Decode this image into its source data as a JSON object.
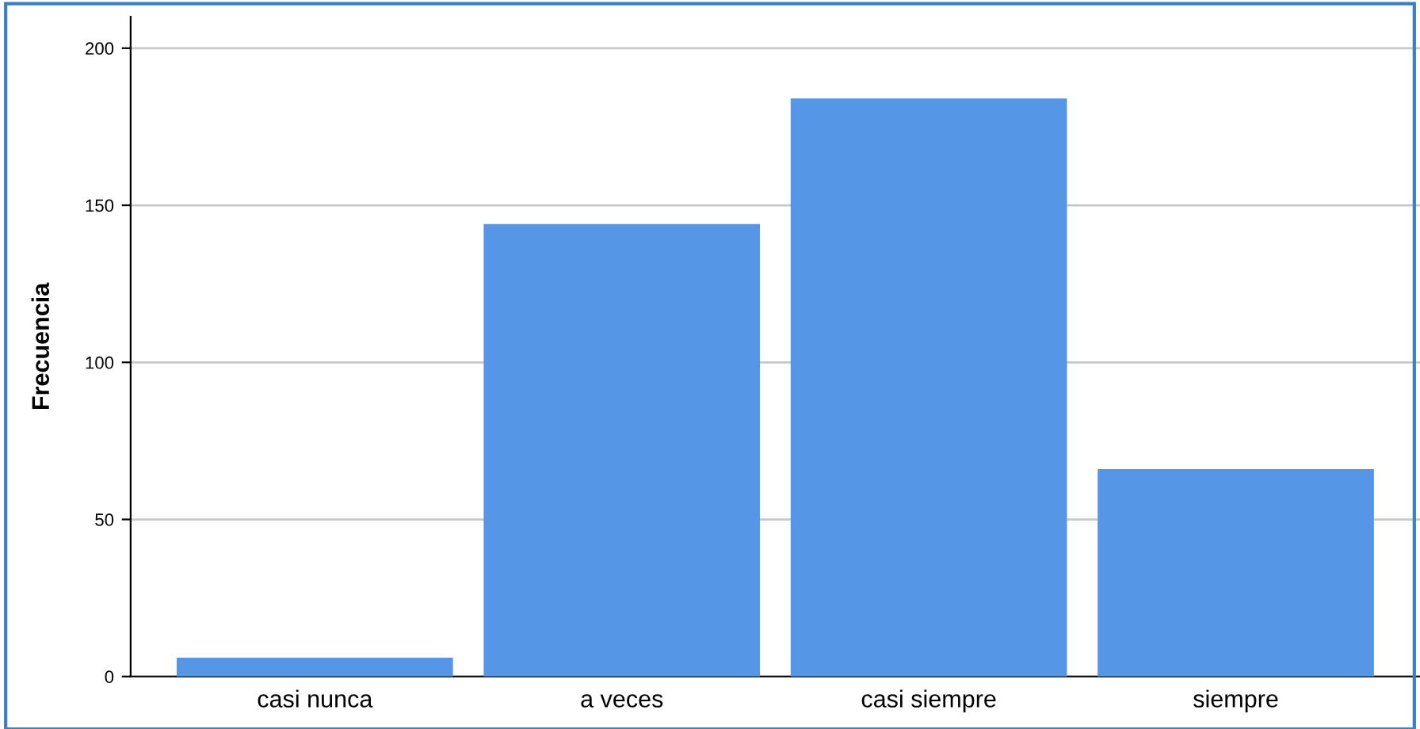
{
  "chart_data": {
    "type": "bar",
    "ylabel": "Frecuencia",
    "categories": [
      "casi nunca",
      "a veces",
      "casi siempre",
      "siempre"
    ],
    "values": [
      6,
      144,
      184,
      66
    ],
    "color": "#5596e6",
    "ylim": [
      0,
      210
    ],
    "yticks": [
      0,
      50,
      100,
      150,
      200
    ],
    "grid": "y",
    "legend": false
  }
}
